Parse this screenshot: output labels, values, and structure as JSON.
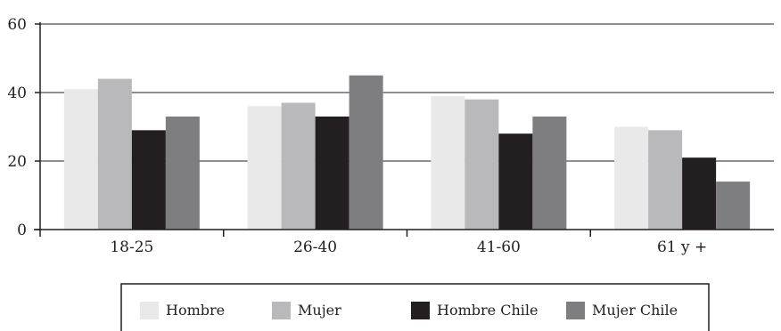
{
  "chart_data": {
    "type": "bar",
    "categories": [
      "18-25",
      "26-40",
      "41-60",
      "61 y +"
    ],
    "series": [
      {
        "name": "Hombre",
        "color": "#e9e9e9",
        "values": [
          41,
          36,
          39,
          30
        ]
      },
      {
        "name": "Mujer",
        "color": "#b9b9bb",
        "values": [
          44,
          37,
          38,
          29
        ]
      },
      {
        "name": "Hombre Chile",
        "color": "#231f20",
        "values": [
          29,
          33,
          28,
          21
        ]
      },
      {
        "name": "Mujer Chile",
        "color": "#7e7d80",
        "values": [
          33,
          45,
          33,
          14
        ]
      }
    ],
    "ylim": [
      0,
      60
    ],
    "yticks": [
      0,
      20,
      40,
      60
    ],
    "grid": true,
    "legend": "bottom"
  }
}
